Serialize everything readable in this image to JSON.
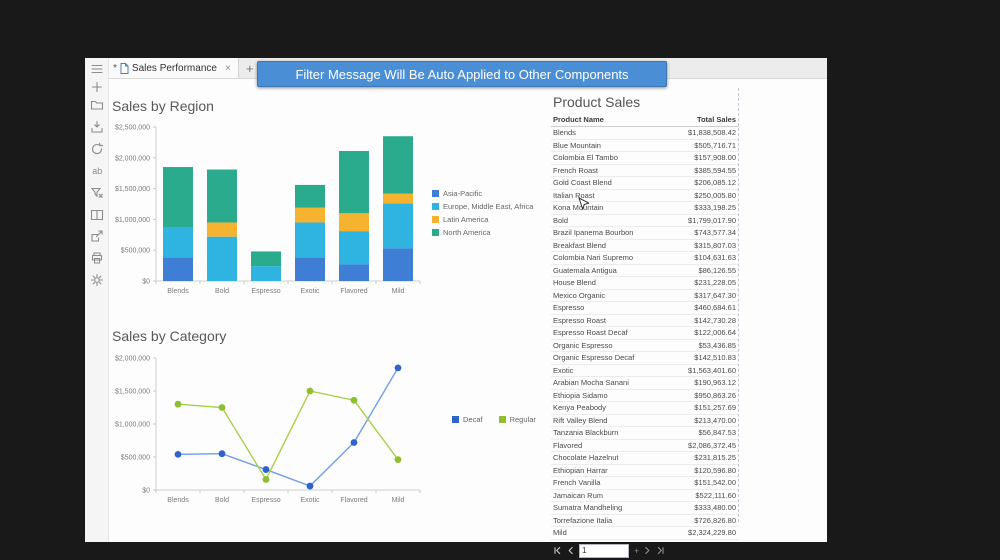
{
  "window": {
    "tab": {
      "modified_indicator": "*",
      "title": "Sales Performance",
      "close_label": "×",
      "new_tab_label": "+"
    },
    "banner": "Filter Message Will Be Auto Applied to Other Components",
    "toolbar": [
      "menu",
      "new",
      "open",
      "save",
      "refresh",
      "rename",
      "clear-filter",
      "layout",
      "export",
      "print",
      "settings"
    ]
  },
  "colors": {
    "banner_blue": "#4a8fd6",
    "asia_pacific": "#3f7ed5",
    "emea": "#2fb3e0",
    "latin_america": "#f5b32f",
    "north_america": "#2aab8e",
    "decaf_line": "#6f9ee8",
    "decaf_point": "#2f63c8",
    "regular_line": "#a8cf4a",
    "regular_point": "#8fbe2e"
  },
  "chart_data": [
    {
      "type": "bar",
      "stacked": true,
      "title": "Sales by Region",
      "categories": [
        "Blends",
        "Bold",
        "Espresso",
        "Exotic",
        "Flavored",
        "Mild"
      ],
      "series": [
        {
          "name": "Asia-Pacific",
          "color": "#3f7ed5",
          "values": [
            380000,
            0,
            0,
            380000,
            270000,
            530000
          ]
        },
        {
          "name": "Europe, Middle East, Africa",
          "color": "#2fb3e0",
          "values": [
            490000,
            720000,
            240000,
            570000,
            540000,
            730000
          ]
        },
        {
          "name": "Latin America",
          "color": "#f5b32f",
          "values": [
            0,
            230000,
            0,
            240000,
            290000,
            160000
          ]
        },
        {
          "name": "North America",
          "color": "#2aab8e",
          "values": [
            980000,
            860000,
            240000,
            370000,
            1010000,
            930000
          ]
        }
      ],
      "ylim": [
        0,
        2500000
      ],
      "ytick_step": 500000,
      "yticks_labels": [
        "$0",
        "$500,000",
        "$1,000,000",
        "$1,500,000",
        "$2,000,000",
        "$2,500,000"
      ],
      "legend_position": "right",
      "grid": false
    },
    {
      "type": "line",
      "title": "Sales by Category",
      "categories": [
        "Blends",
        "Bold",
        "Espresso",
        "Exotic",
        "Flavored",
        "Mild"
      ],
      "series": [
        {
          "name": "Decaf",
          "color": "#2f63c8",
          "line_color": "#6f9ee8",
          "values": [
            540000,
            550000,
            310000,
            60000,
            720000,
            1850000
          ]
        },
        {
          "name": "Regular",
          "color": "#8fbe2e",
          "line_color": "#a8cf4a",
          "values": [
            1300000,
            1250000,
            160000,
            1500000,
            1360000,
            460000
          ]
        }
      ],
      "ylim": [
        0,
        2000000
      ],
      "ytick_step": 500000,
      "yticks_labels": [
        "$0",
        "$500,000",
        "$1,000,000",
        "$1,500,000",
        "$2,000,000"
      ],
      "legend_position": "right",
      "grid": false
    }
  ],
  "table": {
    "title": "Product Sales",
    "columns": [
      "Product Name",
      "Total Sales"
    ],
    "rows": [
      [
        "Blends",
        "$1,838,508.42"
      ],
      [
        "Blue Mountain",
        "$505,716.71"
      ],
      [
        "Colombia El Tambo",
        "$157,908.00"
      ],
      [
        "French Roast",
        "$385,594.55"
      ],
      [
        "Gold Coast Blend",
        "$206,085.12"
      ],
      [
        "Italian Roast",
        "$250,005.80"
      ],
      [
        "Kona Mountain",
        "$333,198.25"
      ],
      [
        "Bold",
        "$1,799,017.90"
      ],
      [
        "Brazil Ipanema Bourbon",
        "$743,577.34"
      ],
      [
        "Breakfast Blend",
        "$315,807.03"
      ],
      [
        "Colombia Nari Supremo",
        "$104,631.63"
      ],
      [
        "Guatemala Antigua",
        "$86,126.55"
      ],
      [
        "House Blend",
        "$231,228.05"
      ],
      [
        "Mexico Organic",
        "$317,647.30"
      ],
      [
        "Espresso",
        "$460,684.61"
      ],
      [
        "Espresso Roast",
        "$142,730.28"
      ],
      [
        "Espresso Roast Decaf",
        "$122,006.64"
      ],
      [
        "Organic Espresso",
        "$53,436.85"
      ],
      [
        "Organic Espresso Decaf",
        "$142,510.83"
      ],
      [
        "Exotic",
        "$1,563,401.60"
      ],
      [
        "Arabian Mocha Sanani",
        "$190,963.12"
      ],
      [
        "Ethiopia Sidamo",
        "$950,863.26"
      ],
      [
        "Kenya Peabody",
        "$151,257.69"
      ],
      [
        "Rift Valley Blend",
        "$213,470.00"
      ],
      [
        "Tanzania Blackburn",
        "$56,847.53"
      ],
      [
        "Flavored",
        "$2,086,372.45"
      ],
      [
        "Chocolate Hazelnut",
        "$231,815.25"
      ],
      [
        "Ethiopian Harrar",
        "$120,596.80"
      ],
      [
        "French Vanilla",
        "$151,542.00"
      ],
      [
        "Jamaican Rum",
        "$522,111.60"
      ],
      [
        "Sumatra Mandheling",
        "$333,480.00"
      ],
      [
        "Torrefazione Italia",
        "$726,826.80"
      ],
      [
        "Mild",
        "$2,324,229.80"
      ]
    ],
    "pagination": {
      "page": "1",
      "plus_label": "+"
    }
  }
}
